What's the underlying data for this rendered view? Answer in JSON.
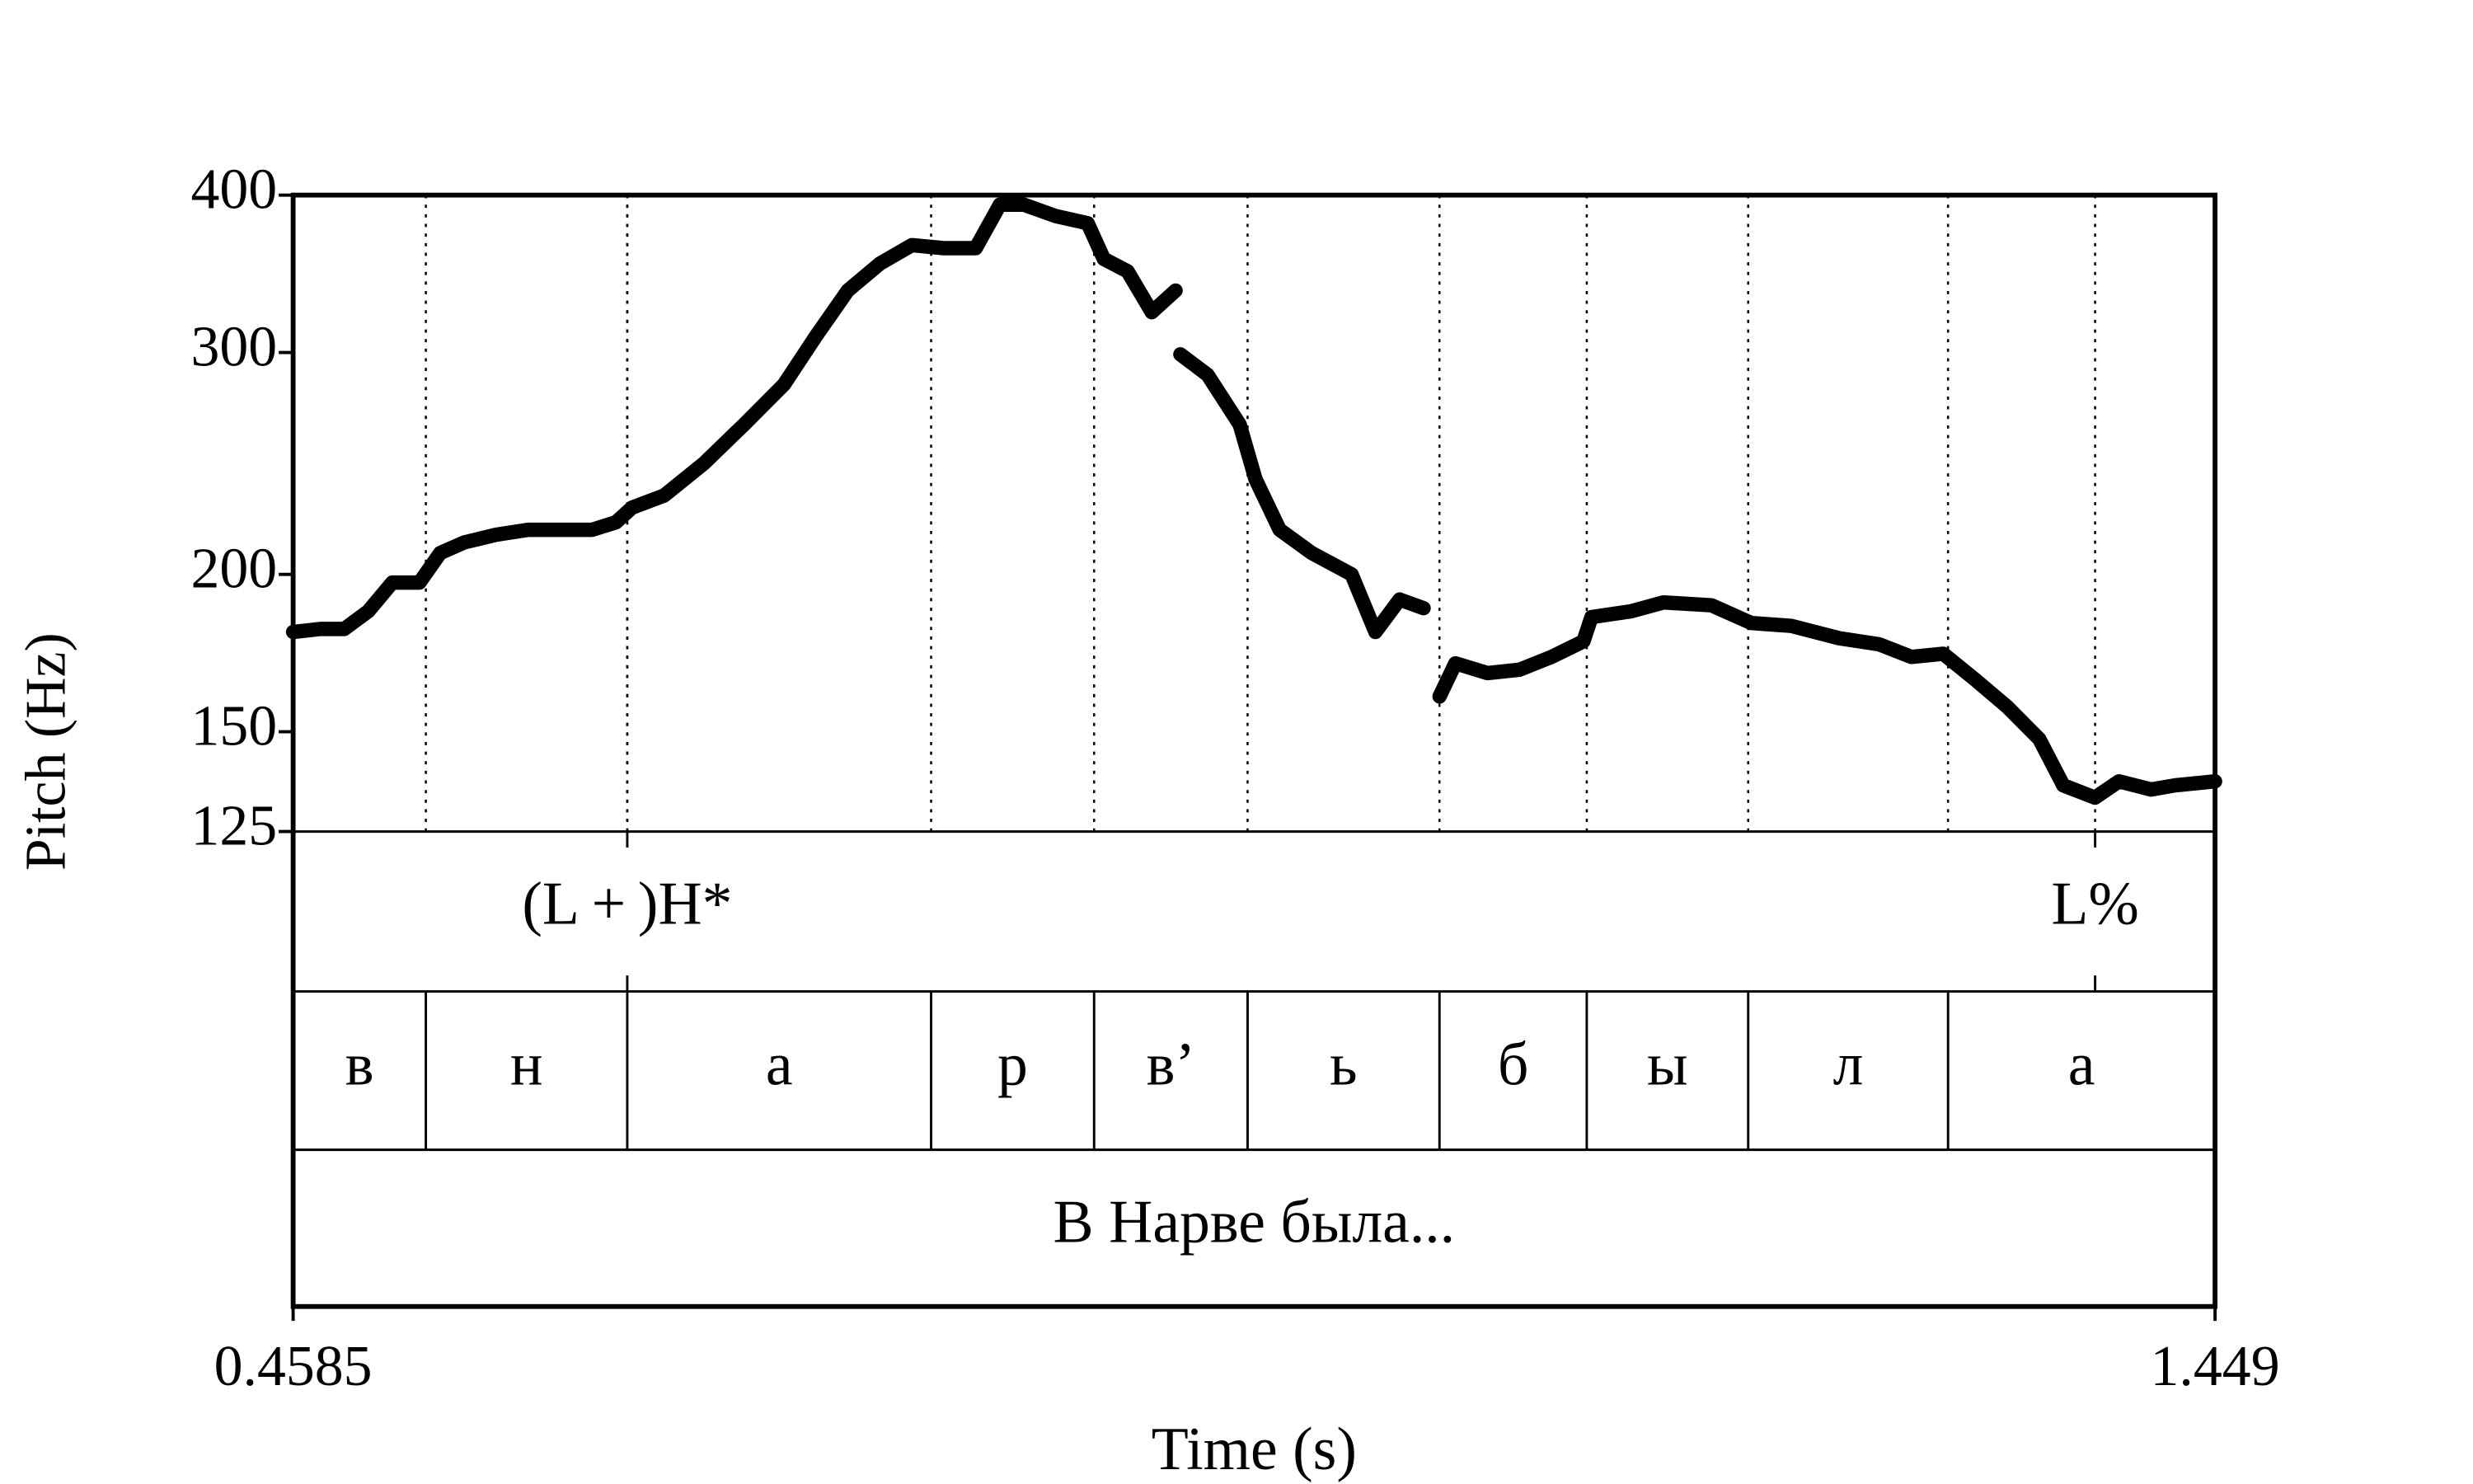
{
  "chart_data": {
    "type": "line",
    "y_label": "Pitch (Hz)",
    "x_label": "Time (s)",
    "log_y": true,
    "color": "#000000",
    "ylim": [
      125,
      400
    ],
    "yticks": [
      125,
      150,
      200,
      300,
      400
    ],
    "xlim": [
      0.4585,
      1.449
    ],
    "xticks": [
      0.4585,
      1.449
    ],
    "x": [
      0.4585,
      0.4725,
      0.4849,
      0.4972,
      0.5096,
      0.5236,
      0.5343,
      0.5467,
      0.5631,
      0.5796,
      0.5961,
      0.6126,
      0.6249,
      0.6332,
      0.6497,
      0.6703,
      0.6909,
      0.7115,
      0.7279,
      0.7444,
      0.7609,
      0.7774,
      0.7939,
      0.8103,
      0.8227,
      0.8351,
      0.8515,
      0.868,
      0.8763,
      0.8886,
      0.901,
      0.9133,
      0.9145,
      0.9158,
      0.9298,
      0.9463,
      0.9545,
      0.9669,
      0.9834,
      1.004,
      1.0163,
      1.0287,
      1.0411,
      1.0452,
      1.0493,
      1.0575,
      1.074,
      1.0905,
      1.107,
      1.1235,
      1.1276,
      1.1482,
      1.1647,
      1.1894,
      1.21,
      1.2306,
      1.2553,
      1.2759,
      1.2924,
      1.3089,
      1.3254,
      1.3419,
      1.3584,
      1.3708,
      1.3871,
      1.3995,
      1.416,
      1.4284,
      1.449
    ],
    "values": [
      180,
      181,
      181,
      187,
      197,
      197,
      208,
      212,
      215,
      217,
      217,
      217,
      220,
      226,
      231,
      245,
      263,
      283,
      309,
      336,
      353,
      365,
      363,
      363,
      393,
      393,
      385,
      380,
      356,
      348,
      323,
      336,
      null,
      299,
      288,
      263,
      238,
      217,
      208,
      200,
      180,
      191,
      188,
      null,
      160,
      170,
      167,
      168,
      172,
      177,
      185,
      187,
      190,
      189,
      183,
      182,
      178,
      176,
      172,
      173,
      165,
      157,
      148,
      136,
      133,
      137,
      135,
      136,
      137
    ],
    "tiers": [
      {
        "kind": "point",
        "times": [
          0.6307,
          1.3872
        ],
        "labels": [
          "(L + )H*",
          "L%"
        ]
      },
      {
        "kind": "interval",
        "boundaries": [
          0.5269,
          0.6307,
          0.7873,
          0.8713,
          0.9504,
          1.0493,
          1.1252,
          1.2084,
          1.3114
        ],
        "labels": [
          "в",
          "н",
          "а",
          "р",
          "в’",
          "ь",
          "б",
          "ы",
          "л",
          "а"
        ]
      },
      {
        "kind": "interval",
        "boundaries": [],
        "labels": [
          "В Нарве была..."
        ]
      }
    ]
  }
}
